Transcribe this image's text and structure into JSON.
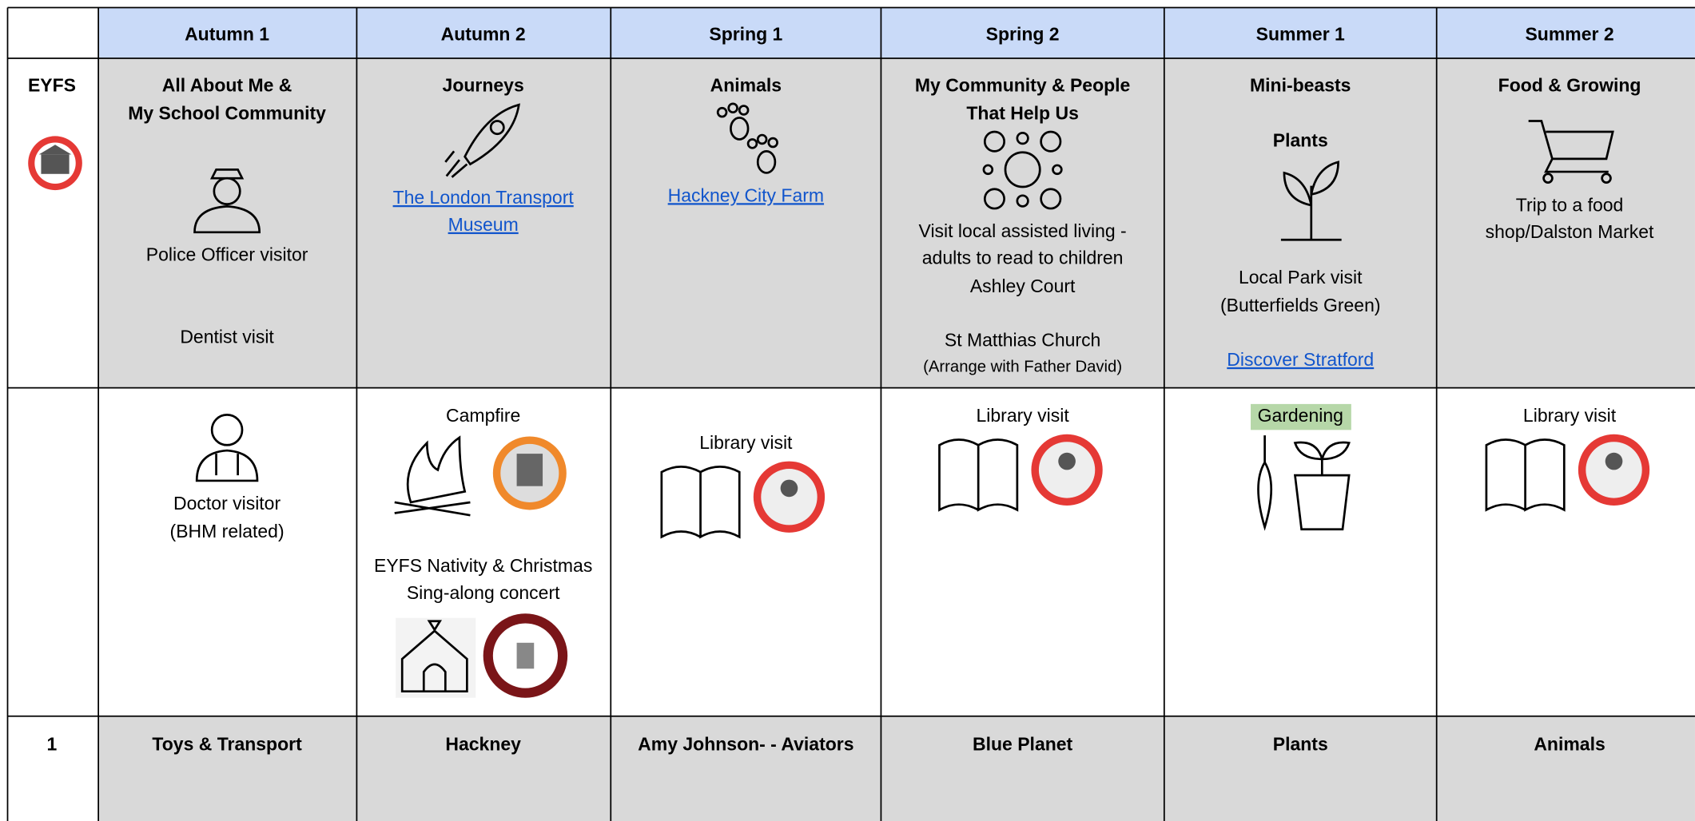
{
  "header": {
    "terms": [
      "Autumn 1",
      "Autumn 2",
      "Spring 1",
      "Spring 2",
      "Summer 1",
      "Summer 2"
    ]
  },
  "rows": [
    {
      "label": "EYFS",
      "cells": [
        {
          "lines": [
            "All About Me &",
            "My School Community",
            "Police Officer visitor",
            "Dentist visit"
          ]
        },
        {
          "lines": [
            "Journeys",
            "The London Transport",
            "Museum"
          ]
        },
        {
          "lines": [
            "Animals",
            "Hackney City Farm"
          ]
        },
        {
          "lines": [
            "My Community & People",
            "That Help Us",
            "Visit local assisted living -",
            "adults to read to children",
            "Ashley Court",
            "St Matthias Church",
            "(Arrange with Father David)"
          ]
        },
        {
          "lines": [
            "Mini-beasts",
            "Plants",
            "Local Park visit",
            "(Butterfields Green)",
            "Discover Stratford"
          ]
        },
        {
          "lines": [
            "Food & Growing",
            "Trip to a food",
            "shop/Dalston Market"
          ]
        }
      ]
    },
    {
      "cells": [
        {
          "lines": [
            "Doctor visitor",
            "(BHM related)"
          ]
        },
        {
          "lines": [
            "Campfire",
            "EYFS Nativity & Christmas",
            "Sing-along concert"
          ]
        },
        {
          "lines": [
            "Library visit"
          ]
        },
        {
          "lines": [
            "Library visit"
          ]
        },
        {
          "lines": [
            "Gardening"
          ]
        },
        {
          "lines": [
            "Library visit"
          ]
        }
      ]
    },
    {
      "label": "1",
      "cells": [
        {
          "lines": [
            "Toys & Transport"
          ]
        },
        {
          "lines": [
            "Hackney"
          ]
        },
        {
          "lines": [
            "Amy Johnson- - Aviators"
          ]
        },
        {
          "lines": [
            "Blue Planet"
          ]
        },
        {
          "lines": [
            "Plants"
          ]
        },
        {
          "lines": [
            "Animals"
          ]
        }
      ]
    }
  ]
}
